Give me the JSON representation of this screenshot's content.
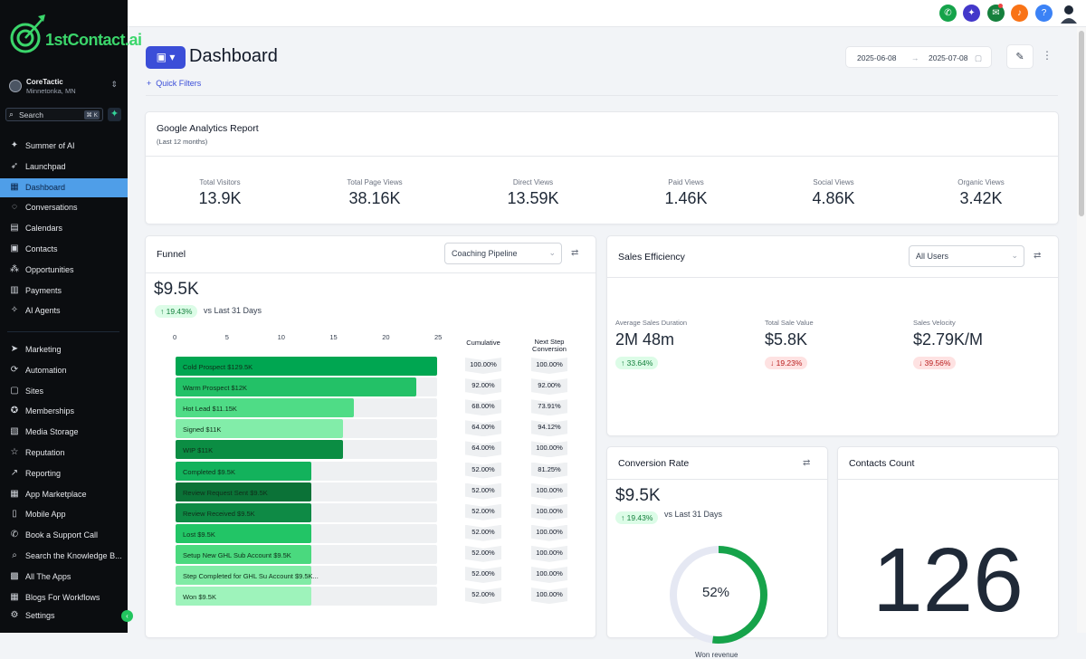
{
  "app": {
    "logo_text": "1stContact.ai"
  },
  "location": {
    "name": "CoreTactic",
    "city": "Minnetonka, MN"
  },
  "search": {
    "label": "Search",
    "shortcut": "⌘ K"
  },
  "sidebar": {
    "items": [
      {
        "label": "Summer of AI",
        "icon": "sparkle-icon"
      },
      {
        "label": "Launchpad",
        "icon": "rocket-icon"
      },
      {
        "label": "Dashboard",
        "icon": "grid-icon"
      },
      {
        "label": "Conversations",
        "icon": "chat-icon"
      },
      {
        "label": "Calendars",
        "icon": "calendar-icon"
      },
      {
        "label": "Contacts",
        "icon": "contacts-icon"
      },
      {
        "label": "Opportunities",
        "icon": "opportunities-icon"
      },
      {
        "label": "Payments",
        "icon": "payments-icon"
      },
      {
        "label": "AI Agents",
        "icon": "ai-agents-icon"
      }
    ],
    "items2": [
      {
        "label": "Marketing",
        "icon": "send-icon"
      },
      {
        "label": "Automation",
        "icon": "automation-icon"
      },
      {
        "label": "Sites",
        "icon": "sites-icon"
      },
      {
        "label": "Memberships",
        "icon": "memberships-icon"
      },
      {
        "label": "Media Storage",
        "icon": "media-icon"
      },
      {
        "label": "Reputation",
        "icon": "star-icon"
      },
      {
        "label": "Reporting",
        "icon": "trend-icon"
      },
      {
        "label": "App Marketplace",
        "icon": "apps-icon"
      },
      {
        "label": "Mobile App",
        "icon": "mobile-icon"
      },
      {
        "label": "Book a Support Call",
        "icon": "phone-icon"
      },
      {
        "label": "Search the Knowledge B...",
        "icon": "search-icon"
      },
      {
        "label": "All The Apps",
        "icon": "app-icon"
      },
      {
        "label": "Blogs For Workflows",
        "icon": "blog-icon"
      },
      {
        "label": "Settings",
        "icon": "gear-icon"
      }
    ]
  },
  "header": {
    "title": "Dashboard",
    "quick_filters": "Quick Filters",
    "date_start": "2025-06-08",
    "date_end": "2025-07-08"
  },
  "analytics": {
    "title": "Google Analytics Report",
    "subtitle": "(Last 12 months)",
    "stats": [
      {
        "label": "Total Visitors",
        "value": "13.9K"
      },
      {
        "label": "Total Page Views",
        "value": "38.16K"
      },
      {
        "label": "Direct Views",
        "value": "13.59K"
      },
      {
        "label": "Paid Views",
        "value": "1.46K"
      },
      {
        "label": "Social Views",
        "value": "4.86K"
      },
      {
        "label": "Organic Views",
        "value": "3.42K"
      }
    ]
  },
  "funnel": {
    "title": "Funnel",
    "pipeline": "Coaching Pipeline",
    "total": "$9.5K",
    "change": "↑ 19.43%",
    "vs": "vs Last 31 Days",
    "axis_ticks": [
      "0",
      "5",
      "10",
      "15",
      "20",
      "25"
    ],
    "axis_max": 25,
    "cumulative_label": "Cumulative",
    "next_step_label": "Next Step Conversion",
    "stages": [
      {
        "label": "Cold Prospect  $129.5K",
        "value": 25,
        "color": "#00a651",
        "cumulative": "100.00%",
        "next": "100.00%"
      },
      {
        "label": "Warm Prospect  $12K",
        "value": 23,
        "color": "#23c167",
        "cumulative": "92.00%",
        "next": "92.00%"
      },
      {
        "label": "Hot Lead  $11.15K",
        "value": 17,
        "color": "#4fdc86",
        "cumulative": "68.00%",
        "next": "73.91%"
      },
      {
        "label": "Signed  $11K",
        "value": 16,
        "color": "#82eda9",
        "cumulative": "64.00%",
        "next": "94.12%"
      },
      {
        "label": "WIP  $11K",
        "value": 16,
        "color": "#0b8d43",
        "cumulative": "64.00%",
        "next": "100.00%"
      },
      {
        "label": "Completed  $9.5K",
        "value": 13,
        "color": "#13b25c",
        "cumulative": "52.00%",
        "next": "81.25%"
      },
      {
        "label": "Review Request Sent  $9.5K",
        "value": 13,
        "color": "#0b7237",
        "cumulative": "52.00%",
        "next": "100.00%"
      },
      {
        "label": "Review Received  $9.5K",
        "value": 13,
        "color": "#0e8a45",
        "cumulative": "52.00%",
        "next": "100.00%"
      },
      {
        "label": "Lost  $9.5K",
        "value": 13,
        "color": "#22c566",
        "cumulative": "52.00%",
        "next": "100.00%"
      },
      {
        "label": "Setup New GHL Sub Account  $9.5K",
        "value": 13,
        "color": "#4ad97e",
        "cumulative": "52.00%",
        "next": "100.00%"
      },
      {
        "label": "Step Completed for GHL Su Account  $9.5K...",
        "value": 13,
        "color": "#80eba5",
        "cumulative": "52.00%",
        "next": "100.00%"
      },
      {
        "label": "Won  $9.5K",
        "value": 13,
        "color": "#9ef3bb",
        "cumulative": "52.00%",
        "next": "100.00%"
      }
    ]
  },
  "sales_efficiency": {
    "title": "Sales Efficiency",
    "filter": "All Users",
    "metrics": [
      {
        "label": "Average Sales Duration",
        "value": "2M 48m",
        "change": "↑ 33.64%",
        "direction": "up"
      },
      {
        "label": "Total Sale Value",
        "value": "$5.8K",
        "change": "↓ 19.23%",
        "direction": "down"
      },
      {
        "label": "Sales Velocity",
        "value": "$2.79K/M",
        "change": "↓ 39.56%",
        "direction": "down"
      }
    ]
  },
  "conversion": {
    "title": "Conversion Rate",
    "total": "$9.5K",
    "change": "↑ 19.43%",
    "vs": "vs Last 31 Days",
    "percent": 52,
    "percent_label": "52%",
    "caption": "Won revenue",
    "color": "#16a34a"
  },
  "contacts": {
    "title": "Contacts Count",
    "value": "126"
  },
  "colors": {
    "accent": "#3b4ed8",
    "active_nav": "#4f9ee8"
  }
}
